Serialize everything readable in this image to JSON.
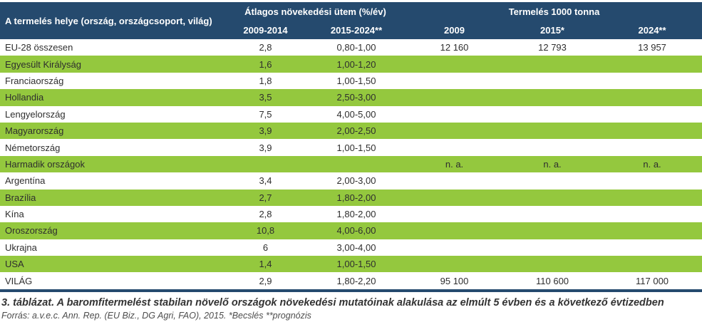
{
  "chart_data": {
    "type": "table",
    "header": {
      "place_label": "A termelés helye (ország, országcsoport, világ)",
      "growth_group": "Átlagos növekedési ütem (%/év)",
      "production_group": "Termelés 1000 tonna",
      "subcols": [
        "2009-2014",
        "2015-2024**",
        "2009",
        "2015*",
        "2024**"
      ]
    },
    "rows": [
      {
        "name": "EU-28 összesen",
        "growth_2009_2014": "2,8",
        "growth_2015_2024": "0,80-1,00",
        "prod_2009": "12 160",
        "prod_2015": "12 793",
        "prod_2024": "13 957"
      },
      {
        "name": "Egyesült Királyság",
        "growth_2009_2014": "1,6",
        "growth_2015_2024": "1,00-1,20",
        "prod_2009": "",
        "prod_2015": "",
        "prod_2024": ""
      },
      {
        "name": "Franciaország",
        "growth_2009_2014": "1,8",
        "growth_2015_2024": "1,00-1,50",
        "prod_2009": "",
        "prod_2015": "",
        "prod_2024": ""
      },
      {
        "name": "Hollandia",
        "growth_2009_2014": "3,5",
        "growth_2015_2024": "2,50-3,00",
        "prod_2009": "",
        "prod_2015": "",
        "prod_2024": ""
      },
      {
        "name": "Lengyelország",
        "growth_2009_2014": "7,5",
        "growth_2015_2024": "4,00-5,00",
        "prod_2009": "",
        "prod_2015": "",
        "prod_2024": ""
      },
      {
        "name": "Magyarország",
        "growth_2009_2014": "3,9",
        "growth_2015_2024": "2,00-2,50",
        "prod_2009": "",
        "prod_2015": "",
        "prod_2024": ""
      },
      {
        "name": "Németország",
        "growth_2009_2014": "3,9",
        "growth_2015_2024": "1,00-1,50",
        "prod_2009": "",
        "prod_2015": "",
        "prod_2024": ""
      },
      {
        "name": "Harmadik országok",
        "growth_2009_2014": "",
        "growth_2015_2024": "",
        "prod_2009": "n. a.",
        "prod_2015": "n. a.",
        "prod_2024": "n. a."
      },
      {
        "name": "Argentína",
        "growth_2009_2014": "3,4",
        "growth_2015_2024": "2,00-3,00",
        "prod_2009": "",
        "prod_2015": "",
        "prod_2024": ""
      },
      {
        "name": "Brazília",
        "growth_2009_2014": "2,7",
        "growth_2015_2024": "1,80-2,00",
        "prod_2009": "",
        "prod_2015": "",
        "prod_2024": ""
      },
      {
        "name": "Kína",
        "growth_2009_2014": "2,8",
        "growth_2015_2024": "1,80-2,00",
        "prod_2009": "",
        "prod_2015": "",
        "prod_2024": ""
      },
      {
        "name": "Oroszország",
        "growth_2009_2014": "10,8",
        "growth_2015_2024": "4,00-6,00",
        "prod_2009": "",
        "prod_2015": "",
        "prod_2024": ""
      },
      {
        "name": "Ukrajna",
        "growth_2009_2014": "6",
        "growth_2015_2024": "3,00-4,00",
        "prod_2009": "",
        "prod_2015": "",
        "prod_2024": ""
      },
      {
        "name": "USA",
        "growth_2009_2014": "1,4",
        "growth_2015_2024": "1,00-1,50",
        "prod_2009": "",
        "prod_2015": "",
        "prod_2024": ""
      },
      {
        "name": "VILÁG",
        "growth_2009_2014": "2,9",
        "growth_2015_2024": "1,80-2,20",
        "prod_2009": "95 100",
        "prod_2015": "110 600",
        "prod_2024": "117 000"
      }
    ],
    "caption": "3. táblázat. A baromfitermelést stabilan növelő országok növekedési mutatóinak alakulása az elmúlt 5 évben és a következő évtizedben",
    "source": "Forrás: a.v.e.c. Ann. Rep. (EU Biz., DG Agri, FAO), 2015.  *Becslés   **prognózis",
    "colors": {
      "header_navy": "#254a6e",
      "row_green": "#94c83e"
    }
  }
}
